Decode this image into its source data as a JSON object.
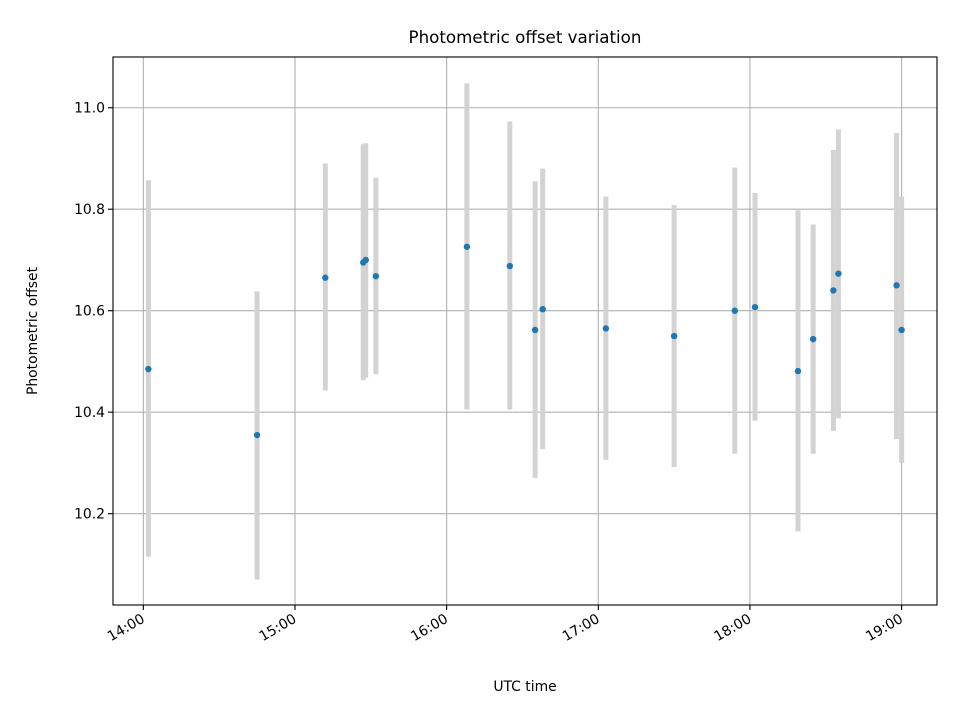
{
  "chart_data": {
    "type": "scatter",
    "title": "Photometric offset variation",
    "xlabel": "UTC time",
    "ylabel": "Photometric offset",
    "x_axis_type": "time",
    "xlim": [
      "13:48",
      "19:14"
    ],
    "ylim": [
      10.02,
      11.1
    ],
    "x_ticks": [
      "14:00",
      "15:00",
      "16:00",
      "17:00",
      "18:00",
      "19:00"
    ],
    "y_ticks": [
      10.2,
      10.4,
      10.6,
      10.8,
      11.0
    ],
    "grid": true,
    "legend": "none",
    "colors": {
      "points": "#1f77b4",
      "errorbars": "#d3d3d3",
      "grid": "#b0b0b0"
    },
    "series": [
      {
        "points": [
          {
            "x": "14:02",
            "y": 10.485,
            "ylow": 10.115,
            "yhigh": 10.857
          },
          {
            "x": "14:45",
            "y": 10.355,
            "ylow": 10.07,
            "yhigh": 10.638
          },
          {
            "x": "15:12",
            "y": 10.665,
            "ylow": 10.443,
            "yhigh": 10.89
          },
          {
            "x": "15:27",
            "y": 10.695,
            "ylow": 10.463,
            "yhigh": 10.928
          },
          {
            "x": "15:28",
            "y": 10.7,
            "ylow": 10.468,
            "yhigh": 10.93
          },
          {
            "x": "15:32",
            "y": 10.668,
            "ylow": 10.475,
            "yhigh": 10.862
          },
          {
            "x": "16:08",
            "y": 10.726,
            "ylow": 10.405,
            "yhigh": 11.048
          },
          {
            "x": "16:25",
            "y": 10.688,
            "ylow": 10.405,
            "yhigh": 10.973
          },
          {
            "x": "16:35",
            "y": 10.562,
            "ylow": 10.27,
            "yhigh": 10.855
          },
          {
            "x": "16:38",
            "y": 10.603,
            "ylow": 10.327,
            "yhigh": 10.88
          },
          {
            "x": "17:03",
            "y": 10.565,
            "ylow": 10.306,
            "yhigh": 10.825
          },
          {
            "x": "17:30",
            "y": 10.55,
            "ylow": 10.292,
            "yhigh": 10.808
          },
          {
            "x": "17:54",
            "y": 10.6,
            "ylow": 10.318,
            "yhigh": 10.882
          },
          {
            "x": "18:02",
            "y": 10.607,
            "ylow": 10.383,
            "yhigh": 10.832
          },
          {
            "x": "18:19",
            "y": 10.481,
            "ylow": 10.165,
            "yhigh": 10.798
          },
          {
            "x": "18:25",
            "y": 10.544,
            "ylow": 10.318,
            "yhigh": 10.77
          },
          {
            "x": "18:33",
            "y": 10.64,
            "ylow": 10.363,
            "yhigh": 10.917
          },
          {
            "x": "18:35",
            "y": 10.673,
            "ylow": 10.388,
            "yhigh": 10.957
          },
          {
            "x": "18:58",
            "y": 10.65,
            "ylow": 10.347,
            "yhigh": 10.95
          },
          {
            "x": "19:00",
            "y": 10.562,
            "ylow": 10.3,
            "yhigh": 10.825
          }
        ]
      }
    ]
  }
}
